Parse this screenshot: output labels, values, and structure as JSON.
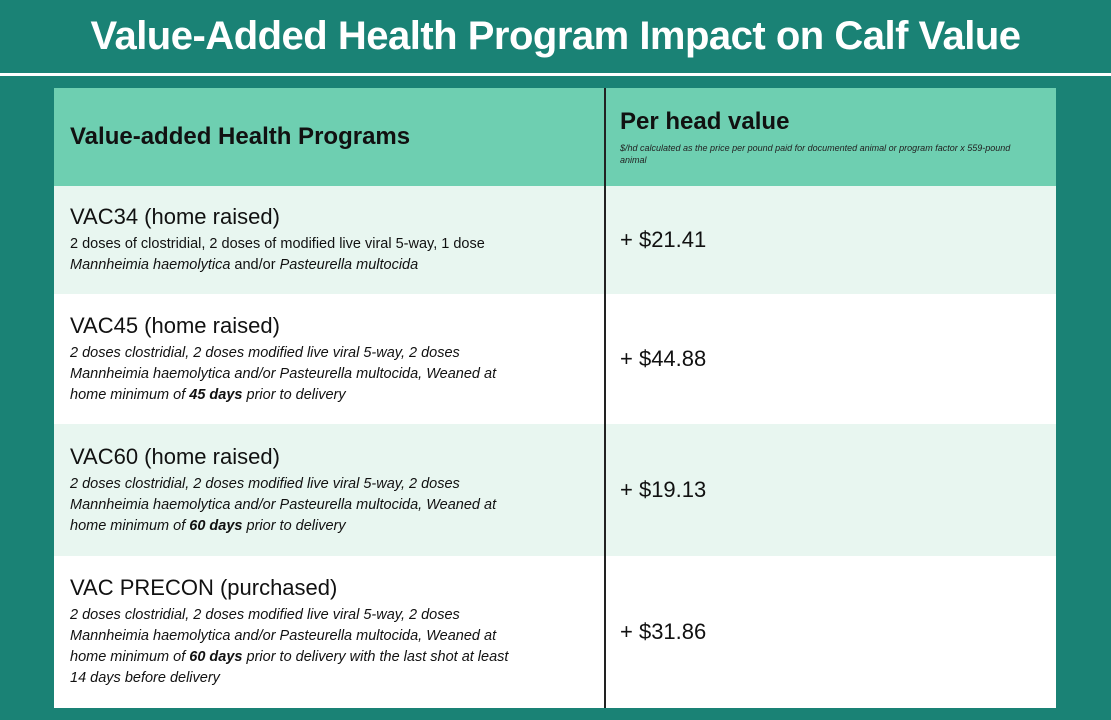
{
  "title": "Value-Added Health Program Impact on Calf Value",
  "header": {
    "col1": "Value-added Health Programs",
    "col2": "Per head value",
    "col2_note": "$/hd calculated as the price per pound paid for documented animal or program factor x 559-pound animal"
  },
  "rows": [
    {
      "name": "VAC34 (home raised)",
      "desc_a": "2 doses of clostridial, 2 doses of modified live viral 5-way, 1 dose",
      "desc_b_italic": "Mannheimia haemolytica",
      "desc_b_plain": " and/or ",
      "desc_b_italic2": "Pasteurella multocida",
      "value": "+ $21.41"
    },
    {
      "name": "VAC45 (home raised)",
      "desc_line1": "2 doses clostridial, 2 doses modified live viral 5-way, 2 doses",
      "desc_line2": "Mannheimia haemolytica and/or Pasteurella multocida, Weaned at",
      "desc_pre": "home minimum of ",
      "desc_bold": "45 days",
      "desc_post": " prior to delivery",
      "value": "+ $44.88"
    },
    {
      "name": "VAC60 (home raised)",
      "desc_line1": "2 doses clostridial, 2 doses modified live viral 5-way, 2 doses",
      "desc_line2": "Mannheimia haemolytica and/or Pasteurella multocida, Weaned at",
      "desc_pre": "home minimum of ",
      "desc_bold": "60 days",
      "desc_post": " prior to delivery",
      "value": "+ $19.13"
    },
    {
      "name": "VAC PRECON (purchased)",
      "desc_line1": "2 doses clostridial, 2 doses modified live viral 5-way, 2 doses",
      "desc_line2": "Mannheimia haemolytica and/or Pasteurella multocida, Weaned at",
      "desc_pre": "home minimum of ",
      "desc_bold": "60 days",
      "desc_post": " prior to delivery with the last shot at least",
      "desc_line4": "14 days before delivery",
      "value": "+ $31.86"
    }
  ]
}
